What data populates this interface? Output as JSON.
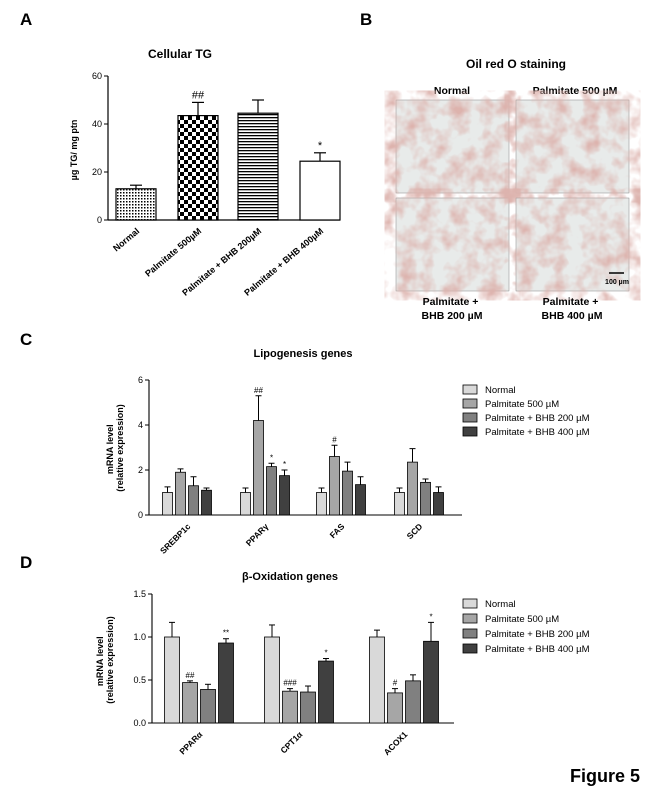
{
  "figure_label": "Figure 5",
  "colors": {
    "axis": "#000000",
    "bar_light": "#d9d9d9",
    "bar_mid1": "#a6a6a6",
    "bar_mid2": "#808080",
    "bar_dark": "#404040"
  },
  "panel_a": {
    "letter": "A",
    "chart_data": {
      "type": "bar",
      "title": "Cellular TG",
      "ylabel": "µg TG/ mg ptn",
      "xlabel": "",
      "ylim": [
        0,
        60
      ],
      "yticks": [
        0,
        20,
        40,
        60
      ],
      "categories": [
        "Normal",
        "Palmitate 500µM",
        "Palmitate + BHB 200µM",
        "Palmitate + BHB 400µM"
      ],
      "values": [
        13,
        43.5,
        44.5,
        24.5
      ],
      "errors": [
        1.5,
        5.5,
        5.5,
        3.5
      ],
      "patterns": [
        "dots",
        "checker",
        "hlines",
        "white"
      ],
      "significance": [
        "",
        "##",
        "",
        "*"
      ]
    }
  },
  "panel_b": {
    "letter": "B",
    "title": "Oil red O staining",
    "labels": {
      "top_left": "Normal",
      "top_right": "Palmitate 500 µM",
      "bottom_left": "Palmitate +\nBHB 200 µM",
      "bottom_right": "Palmitate +\nBHB 400 µM"
    },
    "scale_bar": "100 µm"
  },
  "panel_c": {
    "letter": "C",
    "chart_data": {
      "type": "bar",
      "title": "Lipogenesis genes",
      "ylabel": "mRNA level",
      "ylabel2": "(relative expression)",
      "ylim": [
        0,
        6
      ],
      "yticks": [
        0,
        2,
        4,
        6
      ],
      "categories": [
        "SREBP1c",
        "PPARγ",
        "FAS",
        "SCD"
      ],
      "series": [
        {
          "name": "Normal",
          "values": [
            1.0,
            1.0,
            1.0,
            1.0
          ],
          "errors": [
            0.25,
            0.2,
            0.2,
            0.2
          ],
          "sig": [
            "",
            "",
            "",
            ""
          ]
        },
        {
          "name": "Palmitate 500 µM",
          "values": [
            1.9,
            4.2,
            2.6,
            2.35
          ],
          "errors": [
            0.15,
            1.1,
            0.5,
            0.6
          ],
          "sig": [
            "",
            "##",
            "#",
            ""
          ]
        },
        {
          "name": "Palmitate + BHB 200 µM",
          "values": [
            1.3,
            2.15,
            1.95,
            1.45
          ],
          "errors": [
            0.4,
            0.15,
            0.4,
            0.15
          ],
          "sig": [
            "",
            "*",
            "",
            ""
          ]
        },
        {
          "name": "Palmitate + BHB 400 µM",
          "values": [
            1.1,
            1.75,
            1.35,
            1.0
          ],
          "errors": [
            0.1,
            0.25,
            0.35,
            0.25
          ],
          "sig": [
            "",
            "*",
            "",
            ""
          ]
        }
      ]
    }
  },
  "panel_d": {
    "letter": "D",
    "chart_data": {
      "type": "bar",
      "title": "β-Oxidation genes",
      "ylabel": "mRNA level",
      "ylabel2": "(relative expression)",
      "ylim": [
        0,
        1.5
      ],
      "yticks": [
        "0.0",
        "0.5",
        "1.0",
        "1.5"
      ],
      "categories": [
        "PPARα",
        "CPT1α",
        "ACOX1"
      ],
      "series": [
        {
          "name": "Normal",
          "values": [
            1.0,
            1.0,
            1.0
          ],
          "errors": [
            0.17,
            0.14,
            0.08
          ],
          "sig": [
            "",
            "",
            ""
          ]
        },
        {
          "name": "Palmitate 500 µM",
          "values": [
            0.47,
            0.37,
            0.35
          ],
          "errors": [
            0.02,
            0.03,
            0.05
          ],
          "sig": [
            "##",
            "###",
            "#"
          ]
        },
        {
          "name": "Palmitate + BHB 200 µM",
          "values": [
            0.39,
            0.36,
            0.49
          ],
          "errors": [
            0.06,
            0.07,
            0.07
          ],
          "sig": [
            "",
            "",
            ""
          ]
        },
        {
          "name": "Palmitate + BHB 400 µM",
          "values": [
            0.93,
            0.72,
            0.95
          ],
          "errors": [
            0.05,
            0.03,
            0.22
          ],
          "sig": [
            "**",
            "*",
            "*"
          ]
        }
      ]
    }
  }
}
